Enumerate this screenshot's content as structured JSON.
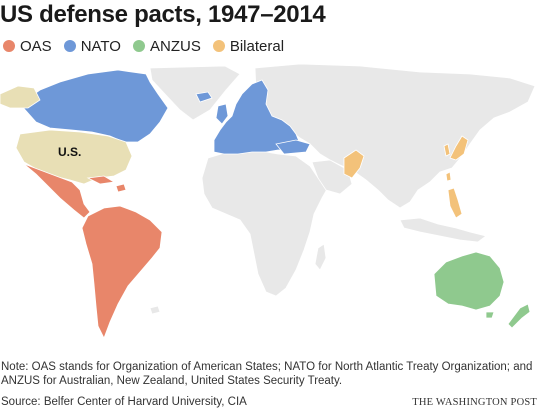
{
  "title": "US defense pacts, 1947–2014",
  "legend": [
    {
      "label": "OAS",
      "color": "#e8866a"
    },
    {
      "label": "NATO",
      "color": "#6e98d8"
    },
    {
      "label": "ANZUS",
      "color": "#8fc98e"
    },
    {
      "label": "Bilateral",
      "color": "#f3c27a"
    }
  ],
  "colors": {
    "us": "#e8dfb5",
    "other_land": "#e8e8e8"
  },
  "map": {
    "us_label": "U.S."
  },
  "note": "Note: OAS stands for Organization of American States; NATO for North Atlantic Treaty Organization; and ANZUS for Australian, New Zealand, United States Security Treaty.",
  "source": "Source: Belfer Center of Harvard University, CIA",
  "credit": "THE WASHINGTON POST"
}
